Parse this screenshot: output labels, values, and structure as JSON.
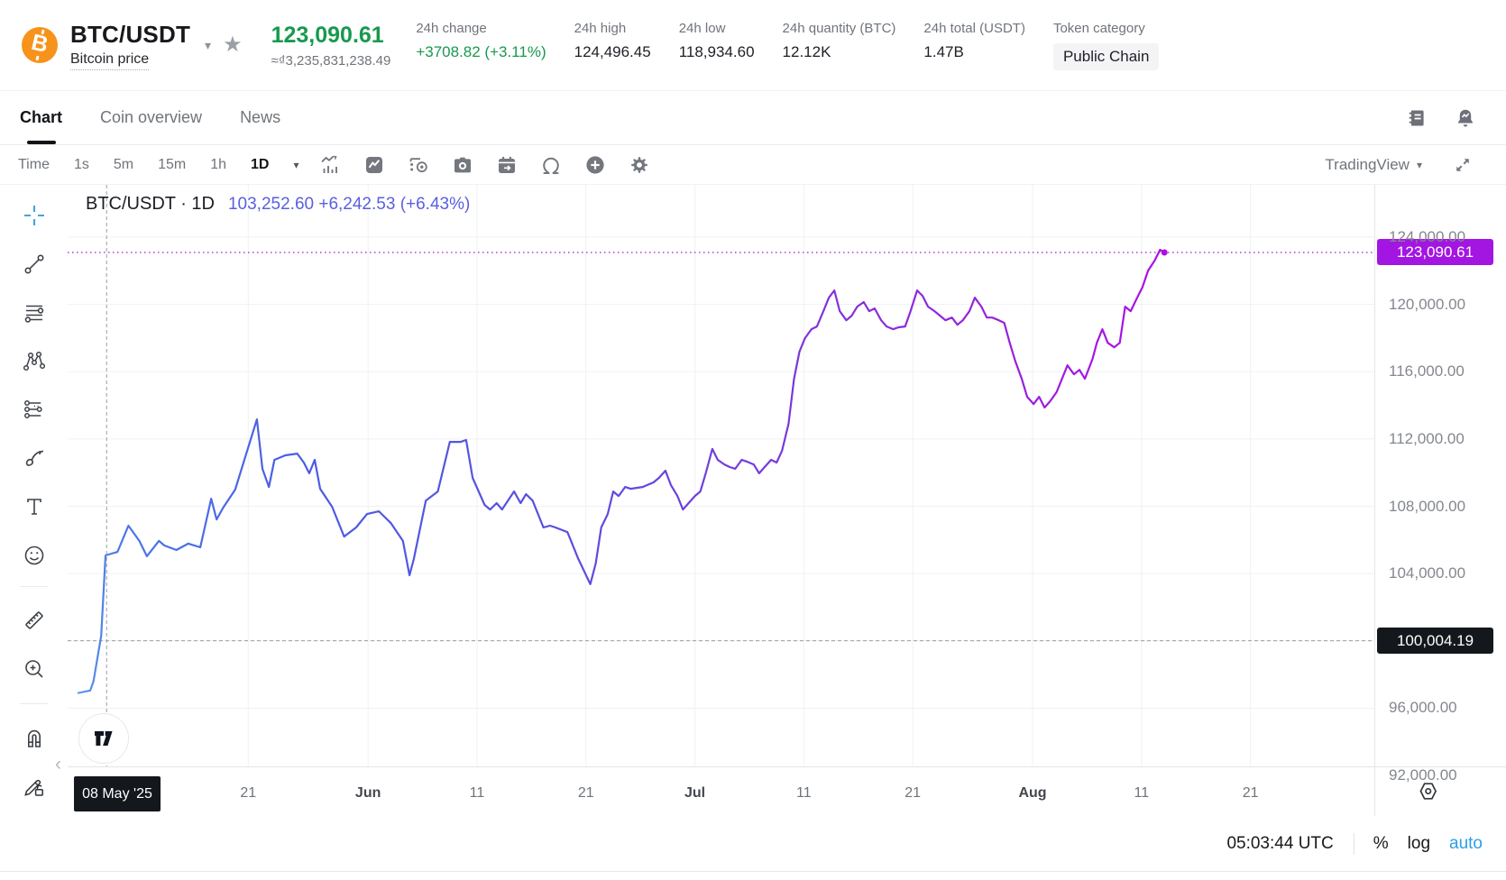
{
  "header": {
    "pair": "BTC/USDT",
    "subtitle": "Bitcoin price",
    "price": "123,090.61",
    "price_fiat": "≈₫3,235,831,238.49",
    "stats": [
      {
        "label": "24h change",
        "value": "+3708.82 (+3.11%)",
        "type": "positive"
      },
      {
        "label": "24h high",
        "value": "124,496.45",
        "type": "plain"
      },
      {
        "label": "24h low",
        "value": "118,934.60",
        "type": "plain"
      },
      {
        "label": "24h quantity (BTC)",
        "value": "12.12K",
        "type": "plain"
      },
      {
        "label": "24h total (USDT)",
        "value": "1.47B",
        "type": "plain"
      },
      {
        "label": "Token category",
        "value": "Public Chain",
        "type": "pill"
      }
    ]
  },
  "tabs": [
    {
      "label": "Chart",
      "active": true
    },
    {
      "label": "Coin overview",
      "active": false
    },
    {
      "label": "News",
      "active": false
    }
  ],
  "toolbar": {
    "intervals": [
      "Time",
      "1s",
      "5m",
      "15m",
      "1h",
      "1D"
    ],
    "active_interval": "1D",
    "brand": "TradingView"
  },
  "legend": {
    "title": "BTC/USDT · 1D",
    "value": "103,252.60 +6,242.53 (+6.43%)"
  },
  "icons": {
    "star": "★",
    "caret_down": "▾",
    "chevron_left": "‹"
  },
  "side_toolbar": {
    "tools": [
      "crosshair",
      "trend-line",
      "horizontal-lines",
      "xabcd-pattern",
      "projection",
      "brush",
      "text",
      "emoji",
      "ruler",
      "zoom-in",
      "magnet",
      "drawing-lock"
    ]
  },
  "price_scale": {
    "current_label": "123,090.61",
    "crosshair_label": "100,004.19"
  },
  "time_scale": {
    "crosshair_label": "08 May '25"
  },
  "status_bar": {
    "clock": "05:03:44 UTC",
    "percent": "%",
    "log": "log",
    "auto": "auto"
  },
  "colors": {
    "up_green": "#17994e",
    "accent_purple": "#a316e2",
    "legend_blue": "#5a60dd",
    "auto_blue": "#2d9ee8",
    "crosshair_dark": "#14171c"
  },
  "chart_data": {
    "type": "line",
    "title": "BTC/USDT · 1D",
    "interval": "1D",
    "last_price": 123090.61,
    "grid": true,
    "legend_position": "top-left",
    "crosshair": {
      "day": 3,
      "price": 100004.19,
      "date": "08 May '25"
    },
    "y_axis": {
      "min": 91000,
      "max": 124800,
      "ticks": [
        {
          "price": 124000,
          "label": "124,000.00"
        },
        {
          "price": 120000,
          "label": "120,000.00"
        },
        {
          "price": 116000,
          "label": "116,000.00"
        },
        {
          "price": 112000,
          "label": "112,000.00"
        },
        {
          "price": 108000,
          "label": "108,000.00"
        },
        {
          "price": 104000,
          "label": "104,000.00"
        },
        {
          "price": 100000,
          "label": ""
        },
        {
          "price": 96000,
          "label": "96,000.00"
        },
        {
          "price": 92000,
          "label": "92,000.00"
        }
      ]
    },
    "x_axis": {
      "unit": "days from start (05 May '25 area)",
      "ticks": [
        {
          "day": 16,
          "label": "21",
          "bold": false
        },
        {
          "day": 27,
          "label": "Jun",
          "bold": true
        },
        {
          "day": 37,
          "label": "11",
          "bold": false
        },
        {
          "day": 47,
          "label": "21",
          "bold": false
        },
        {
          "day": 57,
          "label": "Jul",
          "bold": true
        },
        {
          "day": 67,
          "label": "11",
          "bold": false
        },
        {
          "day": 77,
          "label": "21",
          "bold": false
        },
        {
          "day": 88,
          "label": "Aug",
          "bold": true
        },
        {
          "day": 98,
          "label": "11",
          "bold": false
        },
        {
          "day": 108,
          "label": "21",
          "bold": false
        }
      ]
    },
    "line_gradient": [
      "#5fa6ea",
      "#4e79e8",
      "#4a5ee4",
      "#5b4ee0",
      "#7a38da",
      "#9424da",
      "#ac10e4"
    ],
    "points": [
      [
        0.4,
        96900
      ],
      [
        1.5,
        97050
      ],
      [
        1.8,
        97600
      ],
      [
        2.5,
        100300
      ],
      [
        2.9,
        105080
      ],
      [
        4,
        105290
      ],
      [
        5,
        106850
      ],
      [
        6,
        105940
      ],
      [
        6.7,
        105030
      ],
      [
        7.8,
        105940
      ],
      [
        8.3,
        105670
      ],
      [
        9.4,
        105400
      ],
      [
        10.5,
        105780
      ],
      [
        11.6,
        105560
      ],
      [
        12.6,
        108450
      ],
      [
        13.1,
        107220
      ],
      [
        13.7,
        107920
      ],
      [
        14.8,
        108990
      ],
      [
        15.9,
        111300
      ],
      [
        16.8,
        113170
      ],
      [
        17.3,
        110230
      ],
      [
        17.9,
        109150
      ],
      [
        18.4,
        110760
      ],
      [
        19.4,
        111030
      ],
      [
        20.5,
        111130
      ],
      [
        21.1,
        110600
      ],
      [
        21.6,
        109960
      ],
      [
        22.1,
        110760
      ],
      [
        22.6,
        109040
      ],
      [
        23.7,
        107970
      ],
      [
        24.8,
        106200
      ],
      [
        25.9,
        106740
      ],
      [
        26.9,
        107540
      ],
      [
        28,
        107700
      ],
      [
        29.1,
        107000
      ],
      [
        30.2,
        105940
      ],
      [
        30.8,
        103900
      ],
      [
        31.2,
        104870
      ],
      [
        32.3,
        108340
      ],
      [
        33.4,
        108880
      ],
      [
        34.5,
        111830
      ],
      [
        35.5,
        111830
      ],
      [
        36,
        111940
      ],
      [
        36.6,
        109690
      ],
      [
        37.7,
        108080
      ],
      [
        38.2,
        107810
      ],
      [
        38.8,
        108190
      ],
      [
        39.3,
        107810
      ],
      [
        40.4,
        108880
      ],
      [
        41,
        108190
      ],
      [
        41.5,
        108720
      ],
      [
        42.1,
        108340
      ],
      [
        43.1,
        106740
      ],
      [
        43.7,
        106850
      ],
      [
        44.2,
        106740
      ],
      [
        45.3,
        106470
      ],
      [
        46.3,
        104870
      ],
      [
        47.4,
        103370
      ],
      [
        47.9,
        104600
      ],
      [
        48.4,
        106740
      ],
      [
        49,
        107540
      ],
      [
        49.5,
        108880
      ],
      [
        50,
        108610
      ],
      [
        50.6,
        109150
      ],
      [
        51.1,
        109040
      ],
      [
        52.2,
        109150
      ],
      [
        53.2,
        109420
      ],
      [
        53.7,
        109690
      ],
      [
        54.3,
        110120
      ],
      [
        54.8,
        109260
      ],
      [
        55.4,
        108610
      ],
      [
        55.9,
        107810
      ],
      [
        57,
        108610
      ],
      [
        57.5,
        108880
      ],
      [
        58,
        109960
      ],
      [
        58.6,
        111410
      ],
      [
        59.1,
        110760
      ],
      [
        59.7,
        110490
      ],
      [
        60.2,
        110330
      ],
      [
        60.7,
        110230
      ],
      [
        61.3,
        110760
      ],
      [
        61.8,
        110650
      ],
      [
        62.4,
        110490
      ],
      [
        62.9,
        109960
      ],
      [
        63.4,
        110330
      ],
      [
        64,
        110760
      ],
      [
        64.5,
        110600
      ],
      [
        65,
        111300
      ],
      [
        65.6,
        112900
      ],
      [
        66.1,
        115580
      ],
      [
        66.6,
        117190
      ],
      [
        67.1,
        117990
      ],
      [
        67.7,
        118530
      ],
      [
        68.2,
        118690
      ],
      [
        68.8,
        119600
      ],
      [
        69.3,
        120400
      ],
      [
        69.8,
        120830
      ],
      [
        70.3,
        119600
      ],
      [
        70.9,
        119060
      ],
      [
        71.4,
        119330
      ],
      [
        71.9,
        119870
      ],
      [
        72.5,
        120140
      ],
      [
        73,
        119600
      ],
      [
        73.5,
        119760
      ],
      [
        74.1,
        119060
      ],
      [
        74.6,
        118690
      ],
      [
        75.2,
        118530
      ],
      [
        75.7,
        118640
      ],
      [
        76.3,
        118690
      ],
      [
        76.8,
        119600
      ],
      [
        77.4,
        120830
      ],
      [
        77.9,
        120510
      ],
      [
        78.4,
        119870
      ],
      [
        79,
        119600
      ],
      [
        79.5,
        119330
      ],
      [
        80,
        119060
      ],
      [
        80.6,
        119220
      ],
      [
        81.1,
        118790
      ],
      [
        81.6,
        119060
      ],
      [
        82.2,
        119600
      ],
      [
        82.7,
        120400
      ],
      [
        83.3,
        119870
      ],
      [
        83.8,
        119220
      ],
      [
        84.3,
        119220
      ],
      [
        84.9,
        119060
      ],
      [
        85.4,
        118900
      ],
      [
        85.9,
        117720
      ],
      [
        86.4,
        116650
      ],
      [
        87,
        115580
      ],
      [
        87.5,
        114510
      ],
      [
        88.1,
        114080
      ],
      [
        88.6,
        114510
      ],
      [
        89.1,
        113870
      ],
      [
        89.6,
        114240
      ],
      [
        90.2,
        114780
      ],
      [
        90.7,
        115580
      ],
      [
        91.2,
        116380
      ],
      [
        91.8,
        115850
      ],
      [
        92.3,
        116110
      ],
      [
        92.8,
        115580
      ],
      [
        93.5,
        116760
      ],
      [
        93.9,
        117720
      ],
      [
        94.4,
        118530
      ],
      [
        94.9,
        117720
      ],
      [
        95.5,
        117450
      ],
      [
        96,
        117720
      ],
      [
        96.5,
        119870
      ],
      [
        97,
        119600
      ],
      [
        97.6,
        120400
      ],
      [
        98.1,
        121040
      ],
      [
        98.6,
        122010
      ],
      [
        99.2,
        122600
      ],
      [
        99.7,
        123250
      ],
      [
        100.1,
        123090.61
      ]
    ]
  }
}
